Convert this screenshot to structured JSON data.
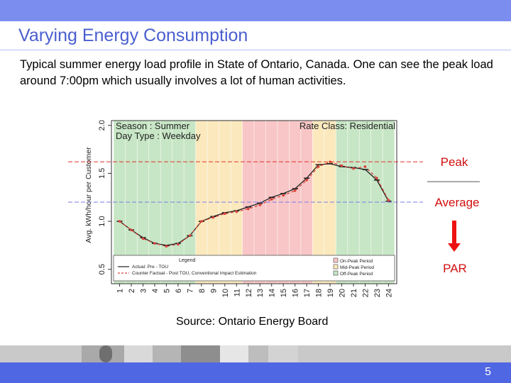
{
  "slide": {
    "title": "Varying Energy Consumption",
    "description": "Typical summer energy load profile in State of Ontario, Canada. One can see the peak load around 7:00pm which usually involves a lot of human activities.",
    "source": "Source: Ontario Energy Board",
    "page_number": "5"
  },
  "annotations": {
    "peak": "Peak",
    "average": "Average",
    "par": "PAR"
  },
  "colors": {
    "accent": "#5067e4",
    "title": "#4a5ecf",
    "off_peak": "#c7e6c5",
    "mid_peak": "#fbe9bd",
    "on_peak": "#f8c6c6",
    "actual_line": "#222222",
    "counterfactual_line": "#d9433b",
    "arrow": "#ee1111"
  },
  "chart_data": {
    "type": "line",
    "season_text": "Season : Summer",
    "day_type_text": "Day Type :  Weekday",
    "rate_class_text": "Rate Class: Residential",
    "ylabel": "Avg. kWh/hour per Customer",
    "ylim": [
      0.35,
      2.05
    ],
    "yticks": [
      "0.5",
      "1.0",
      "1.5",
      "2.0"
    ],
    "xlim": [
      0.3,
      24.7
    ],
    "x": [
      "1",
      "2",
      "3",
      "4",
      "5",
      "6",
      "7",
      "8",
      "9",
      "10",
      "11",
      "12",
      "13",
      "14",
      "15",
      "16",
      "17",
      "18",
      "19",
      "20",
      "21",
      "22",
      "23",
      "24"
    ],
    "series": [
      {
        "name": "Actual: Pre - TOU",
        "values": [
          1.0,
          0.91,
          0.83,
          0.77,
          0.75,
          0.77,
          0.85,
          1.0,
          1.05,
          1.09,
          1.11,
          1.15,
          1.19,
          1.25,
          1.29,
          1.34,
          1.45,
          1.59,
          1.6,
          1.57,
          1.56,
          1.54,
          1.43,
          1.21
        ]
      },
      {
        "name": "Counter Factual - Post TOU, Conventional Impact Estimation",
        "values": [
          1.0,
          0.91,
          0.82,
          0.77,
          0.74,
          0.76,
          0.85,
          1.0,
          1.04,
          1.08,
          1.1,
          1.13,
          1.17,
          1.23,
          1.27,
          1.32,
          1.43,
          1.57,
          1.62,
          1.58,
          1.55,
          1.57,
          1.45,
          1.22
        ]
      }
    ],
    "periods": [
      {
        "name": "Off-Peak Period",
        "start": 1,
        "end": 7
      },
      {
        "name": "Mid-Peak Period",
        "start": 8,
        "end": 11
      },
      {
        "name": "On-Peak Period",
        "start": 12,
        "end": 17
      },
      {
        "name": "Mid-Peak Period",
        "start": 18,
        "end": 19
      },
      {
        "name": "Off-Peak Period",
        "start": 20,
        "end": 24
      }
    ],
    "legend_title": "Legend",
    "legend_lines": [
      "Actual: Pre - TOU",
      "Counter Factual - Post TOU, Conventional Impact Estimation"
    ],
    "legend_periods": [
      "On-Peak Period",
      "Mid-Peak Period",
      "Off-Peak Period"
    ],
    "peak_reference": 1.62,
    "average_reference": 1.2
  }
}
